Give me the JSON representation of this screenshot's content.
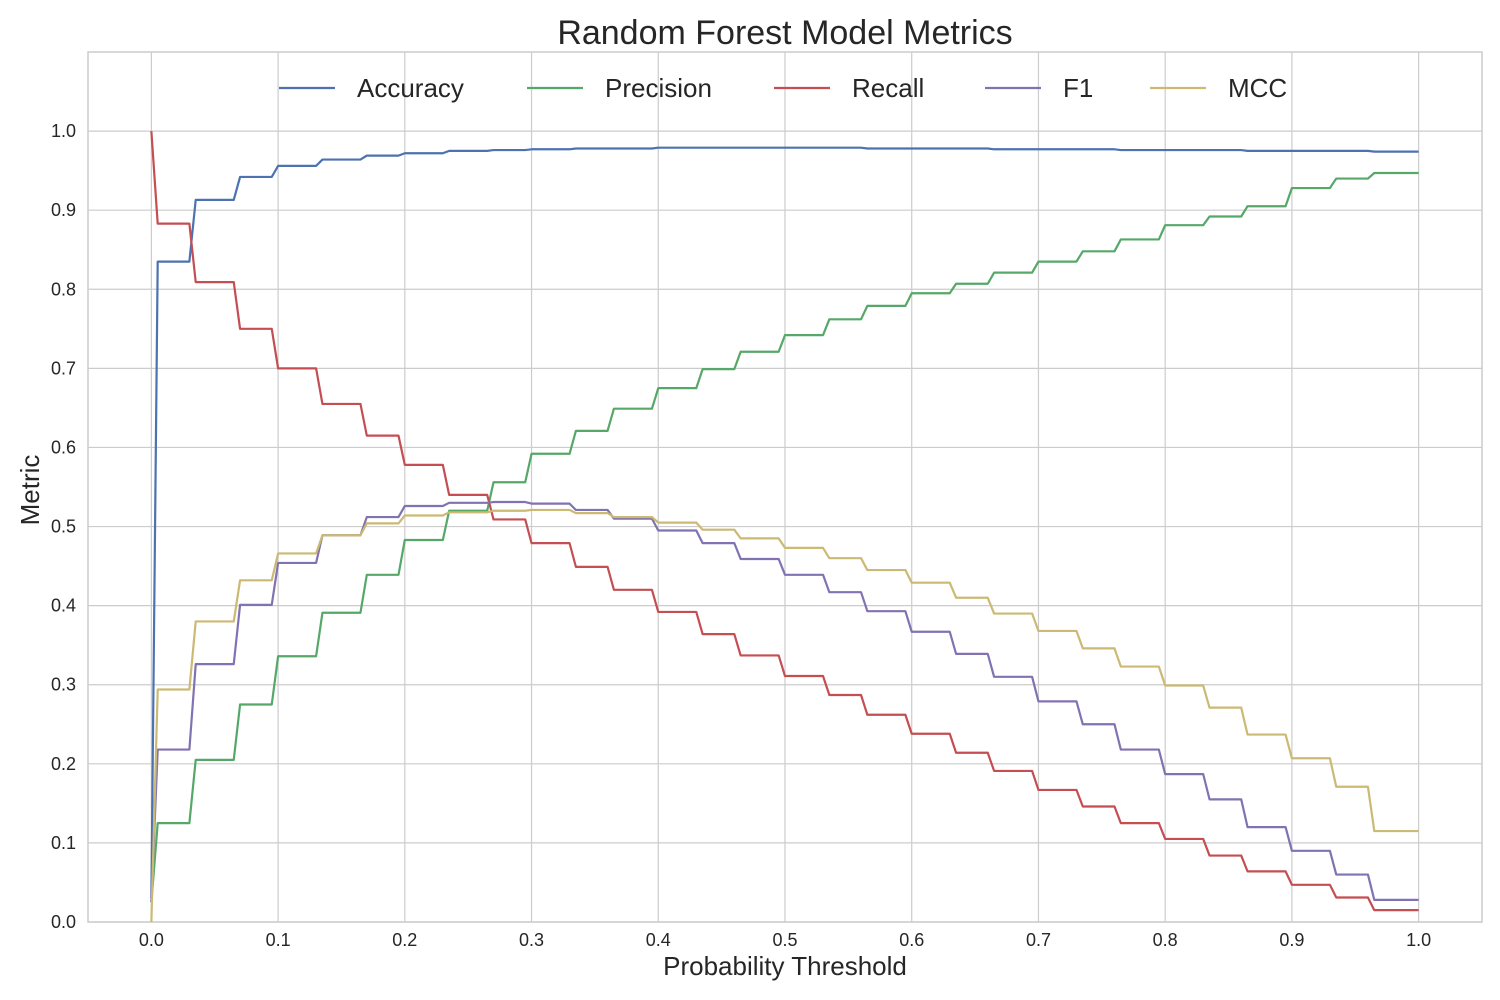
{
  "chart_data": {
    "type": "line",
    "title": "Random Forest Model Metrics",
    "xlabel": "Probability Threshold",
    "ylabel": "Metric",
    "xlim": [
      -0.05,
      1.05
    ],
    "ylim": [
      0.0,
      1.1
    ],
    "xticks": [
      "0.0",
      "0.1",
      "0.2",
      "0.3",
      "0.4",
      "0.5",
      "0.6",
      "0.7",
      "0.8",
      "0.9",
      "1.0"
    ],
    "yticks": [
      "0.0",
      "0.1",
      "0.2",
      "0.3",
      "0.4",
      "0.5",
      "0.6",
      "0.7",
      "0.8",
      "0.9",
      "1.0"
    ],
    "grid": true,
    "legend_position": "top-center",
    "x": [
      0.0,
      0.005,
      0.03,
      0.035,
      0.065,
      0.07,
      0.095,
      0.1,
      0.13,
      0.135,
      0.165,
      0.17,
      0.195,
      0.2,
      0.23,
      0.235,
      0.265,
      0.27,
      0.295,
      0.3,
      0.33,
      0.335,
      0.36,
      0.365,
      0.395,
      0.4,
      0.43,
      0.435,
      0.46,
      0.465,
      0.495,
      0.5,
      0.53,
      0.535,
      0.56,
      0.565,
      0.595,
      0.6,
      0.63,
      0.635,
      0.66,
      0.665,
      0.695,
      0.7,
      0.73,
      0.735,
      0.76,
      0.765,
      0.795,
      0.8,
      0.83,
      0.835,
      0.86,
      0.865,
      0.895,
      0.9,
      0.93,
      0.935,
      0.96,
      0.965,
      0.995,
      1.0
    ],
    "series": [
      {
        "name": "Accuracy",
        "color": "#4c72b0",
        "values": [
          0.03,
          0.835,
          0.835,
          0.913,
          0.913,
          0.942,
          0.942,
          0.956,
          0.956,
          0.964,
          0.964,
          0.969,
          0.969,
          0.972,
          0.972,
          0.975,
          0.975,
          0.976,
          0.976,
          0.977,
          0.977,
          0.978,
          0.978,
          0.978,
          0.978,
          0.979,
          0.979,
          0.979,
          0.979,
          0.979,
          0.979,
          0.979,
          0.979,
          0.979,
          0.979,
          0.978,
          0.978,
          0.978,
          0.978,
          0.978,
          0.978,
          0.977,
          0.977,
          0.977,
          0.977,
          0.977,
          0.977,
          0.976,
          0.976,
          0.976,
          0.976,
          0.976,
          0.976,
          0.975,
          0.975,
          0.975,
          0.975,
          0.975,
          0.975,
          0.974,
          0.974,
          0.974
        ]
      },
      {
        "name": "Precision",
        "color": "#55a868",
        "values": [
          0.025,
          0.125,
          0.125,
          0.205,
          0.205,
          0.275,
          0.275,
          0.336,
          0.336,
          0.391,
          0.391,
          0.439,
          0.439,
          0.483,
          0.483,
          0.52,
          0.52,
          0.556,
          0.556,
          0.592,
          0.592,
          0.621,
          0.621,
          0.649,
          0.649,
          0.675,
          0.675,
          0.699,
          0.699,
          0.721,
          0.721,
          0.742,
          0.742,
          0.762,
          0.762,
          0.779,
          0.779,
          0.795,
          0.795,
          0.807,
          0.807,
          0.821,
          0.821,
          0.835,
          0.835,
          0.848,
          0.848,
          0.863,
          0.863,
          0.881,
          0.881,
          0.892,
          0.892,
          0.905,
          0.905,
          0.928,
          0.928,
          0.94,
          0.94,
          0.947,
          0.947,
          0.947
        ]
      },
      {
        "name": "Recall",
        "color": "#c44e52",
        "values": [
          1.0,
          0.883,
          0.883,
          0.809,
          0.809,
          0.75,
          0.75,
          0.7,
          0.7,
          0.655,
          0.655,
          0.615,
          0.615,
          0.578,
          0.578,
          0.54,
          0.54,
          0.509,
          0.509,
          0.479,
          0.479,
          0.449,
          0.449,
          0.42,
          0.42,
          0.392,
          0.392,
          0.364,
          0.364,
          0.337,
          0.337,
          0.311,
          0.311,
          0.287,
          0.287,
          0.262,
          0.262,
          0.238,
          0.238,
          0.214,
          0.214,
          0.191,
          0.191,
          0.167,
          0.167,
          0.146,
          0.146,
          0.125,
          0.125,
          0.105,
          0.105,
          0.084,
          0.084,
          0.064,
          0.064,
          0.047,
          0.047,
          0.031,
          0.031,
          0.015,
          0.015,
          0.015
        ]
      },
      {
        "name": "F1",
        "color": "#8172b2",
        "values": [
          0.025,
          0.218,
          0.218,
          0.326,
          0.326,
          0.401,
          0.401,
          0.454,
          0.454,
          0.489,
          0.489,
          0.512,
          0.512,
          0.526,
          0.526,
          0.53,
          0.53,
          0.531,
          0.531,
          0.529,
          0.529,
          0.521,
          0.521,
          0.51,
          0.51,
          0.495,
          0.495,
          0.479,
          0.479,
          0.459,
          0.459,
          0.439,
          0.439,
          0.417,
          0.417,
          0.393,
          0.393,
          0.367,
          0.367,
          0.339,
          0.339,
          0.31,
          0.31,
          0.279,
          0.279,
          0.25,
          0.25,
          0.218,
          0.218,
          0.187,
          0.187,
          0.155,
          0.155,
          0.12,
          0.12,
          0.09,
          0.09,
          0.06,
          0.06,
          0.028,
          0.028,
          0.028
        ]
      },
      {
        "name": "MCC",
        "color": "#ccb974",
        "values": [
          0.0,
          0.294,
          0.294,
          0.38,
          0.38,
          0.432,
          0.432,
          0.466,
          0.466,
          0.489,
          0.489,
          0.504,
          0.504,
          0.514,
          0.514,
          0.518,
          0.518,
          0.52,
          0.52,
          0.521,
          0.521,
          0.517,
          0.517,
          0.512,
          0.512,
          0.505,
          0.505,
          0.496,
          0.496,
          0.485,
          0.485,
          0.473,
          0.473,
          0.46,
          0.46,
          0.445,
          0.445,
          0.429,
          0.429,
          0.41,
          0.41,
          0.39,
          0.39,
          0.368,
          0.368,
          0.346,
          0.346,
          0.323,
          0.323,
          0.299,
          0.299,
          0.271,
          0.271,
          0.237,
          0.237,
          0.207,
          0.207,
          0.171,
          0.171,
          0.115,
          0.115,
          0.115
        ]
      }
    ]
  }
}
